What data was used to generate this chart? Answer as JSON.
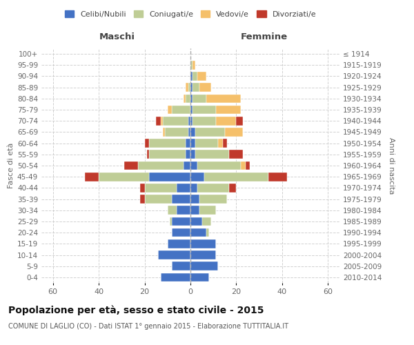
{
  "age_groups": [
    "0-4",
    "5-9",
    "10-14",
    "15-19",
    "20-24",
    "25-29",
    "30-34",
    "35-39",
    "40-44",
    "45-49",
    "50-54",
    "55-59",
    "60-64",
    "65-69",
    "70-74",
    "75-79",
    "80-84",
    "85-89",
    "90-94",
    "95-99",
    "100+"
  ],
  "birth_years": [
    "2010-2014",
    "2005-2009",
    "2000-2004",
    "1995-1999",
    "1990-1994",
    "1985-1989",
    "1980-1984",
    "1975-1979",
    "1970-1974",
    "1965-1969",
    "1960-1964",
    "1955-1959",
    "1950-1954",
    "1945-1949",
    "1940-1944",
    "1935-1939",
    "1930-1934",
    "1925-1929",
    "1920-1924",
    "1915-1919",
    "≤ 1914"
  ],
  "males": {
    "celibi": [
      13,
      8,
      14,
      10,
      8,
      8,
      6,
      8,
      6,
      18,
      3,
      2,
      2,
      1,
      1,
      0,
      0,
      0,
      0,
      0,
      0
    ],
    "coniugati": [
      0,
      0,
      0,
      0,
      0,
      1,
      4,
      12,
      14,
      22,
      20,
      16,
      16,
      10,
      11,
      8,
      2,
      1,
      0,
      0,
      0
    ],
    "vedovi": [
      0,
      0,
      0,
      0,
      0,
      0,
      0,
      0,
      0,
      0,
      0,
      0,
      0,
      1,
      1,
      2,
      1,
      1,
      0,
      0,
      0
    ],
    "divorziati": [
      0,
      0,
      0,
      0,
      0,
      0,
      0,
      2,
      2,
      6,
      6,
      1,
      2,
      0,
      2,
      0,
      0,
      0,
      0,
      0,
      0
    ]
  },
  "females": {
    "nubili": [
      8,
      12,
      11,
      11,
      7,
      5,
      4,
      4,
      3,
      6,
      3,
      2,
      2,
      2,
      1,
      1,
      1,
      1,
      1,
      0,
      0
    ],
    "coniugate": [
      0,
      0,
      0,
      0,
      1,
      4,
      7,
      12,
      14,
      28,
      19,
      15,
      10,
      13,
      10,
      10,
      6,
      3,
      2,
      1,
      0
    ],
    "vedove": [
      0,
      0,
      0,
      0,
      0,
      0,
      0,
      0,
      0,
      0,
      2,
      0,
      2,
      8,
      9,
      11,
      15,
      5,
      4,
      1,
      0
    ],
    "divorziate": [
      0,
      0,
      0,
      0,
      0,
      0,
      0,
      0,
      3,
      8,
      2,
      6,
      2,
      0,
      3,
      0,
      0,
      0,
      0,
      0,
      0
    ]
  },
  "colors": {
    "celibi": "#4472C4",
    "coniugati": "#BFCD96",
    "vedovi": "#F5C06B",
    "divorziati": "#C0392B"
  },
  "title": "Popolazione per età, sesso e stato civile - 2015",
  "subtitle": "COMUNE DI LAGLIO (CO) - Dati ISTAT 1° gennaio 2015 - Elaborazione TUTTITALIA.IT",
  "xlabel_left": "Maschi",
  "xlabel_right": "Femmine",
  "ylabel_left": "Fasce di età",
  "ylabel_right": "Anni di nascita",
  "legend_labels": [
    "Celibi/Nubili",
    "Coniugati/e",
    "Vedovi/e",
    "Divorziati/e"
  ],
  "xlim": 65,
  "background_color": "#ffffff",
  "grid_color": "#cccccc"
}
